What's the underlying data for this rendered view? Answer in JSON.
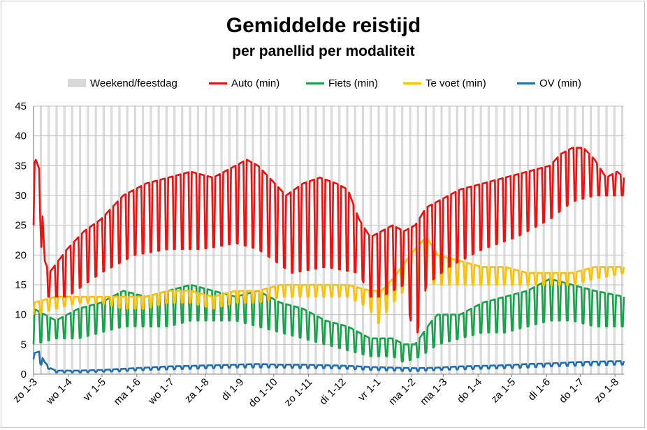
{
  "chart_data": {
    "type": "line",
    "title": "Gemiddelde reistijd",
    "subtitle": "per panellid per modaliteit",
    "ylim": [
      0,
      45
    ],
    "yticks": [
      0,
      5,
      10,
      15,
      20,
      25,
      30,
      35,
      40,
      45
    ],
    "xlim": [
      0,
      526
    ],
    "x_unit": "days since zo 1-3",
    "xticks": [
      {
        "label": "zo 1-3",
        "day": 0
      },
      {
        "label": "wo 1-4",
        "day": 31
      },
      {
        "label": "vr 1-5",
        "day": 61
      },
      {
        "label": "ma 1-6",
        "day": 92
      },
      {
        "label": "wo 1-7",
        "day": 122
      },
      {
        "label": "za 1-8",
        "day": 153
      },
      {
        "label": "di 1-9",
        "day": 184
      },
      {
        "label": "do 1-10",
        "day": 214
      },
      {
        "label": "zo 1-11",
        "day": 245
      },
      {
        "label": "di 1-12",
        "day": 275
      },
      {
        "label": "vr 1-1",
        "day": 306
      },
      {
        "label": "ma 1-2",
        "day": 337
      },
      {
        "label": "ma 1-3",
        "day": 365
      },
      {
        "label": "do 1-4",
        "day": 396
      },
      {
        "label": "za 1-5",
        "day": 426
      },
      {
        "label": "di 1-6",
        "day": 457
      },
      {
        "label": "do 1-7",
        "day": 487
      },
      {
        "label": "zo 1-8",
        "day": 518
      }
    ],
    "weekend_label": "Weekend/feestdag",
    "weekend_color": "#d9d9d9",
    "series": [
      {
        "name": "Auto (min)",
        "color": "#ee1111",
        "weekday": [
          [
            0,
            35
          ],
          [
            2,
            36
          ],
          [
            6,
            34
          ],
          [
            10,
            19
          ],
          [
            14,
            17
          ],
          [
            22,
            19
          ],
          [
            30,
            21
          ],
          [
            45,
            24
          ],
          [
            60,
            26
          ],
          [
            80,
            30
          ],
          [
            100,
            32
          ],
          [
            120,
            33
          ],
          [
            140,
            34
          ],
          [
            160,
            33
          ],
          [
            180,
            35
          ],
          [
            190,
            36
          ],
          [
            200,
            35
          ],
          [
            210,
            33
          ],
          [
            225,
            30
          ],
          [
            240,
            32
          ],
          [
            255,
            33
          ],
          [
            270,
            32
          ],
          [
            280,
            31
          ],
          [
            290,
            26
          ],
          [
            300,
            23
          ],
          [
            310,
            24
          ],
          [
            320,
            25
          ],
          [
            330,
            24
          ],
          [
            340,
            25
          ],
          [
            350,
            28
          ],
          [
            360,
            29
          ],
          [
            380,
            31
          ],
          [
            400,
            32
          ],
          [
            420,
            33
          ],
          [
            440,
            34
          ],
          [
            460,
            35
          ],
          [
            470,
            37
          ],
          [
            480,
            38
          ],
          [
            490,
            38
          ],
          [
            500,
            36
          ],
          [
            510,
            33
          ],
          [
            520,
            34
          ],
          [
            526,
            33
          ]
        ],
        "weekend": [
          [
            0,
            25
          ],
          [
            5,
            30
          ],
          [
            8,
            17
          ],
          [
            12,
            13
          ],
          [
            30,
            13
          ],
          [
            60,
            17
          ],
          [
            90,
            20
          ],
          [
            120,
            21
          ],
          [
            150,
            21
          ],
          [
            180,
            22
          ],
          [
            200,
            21
          ],
          [
            230,
            17
          ],
          [
            260,
            18
          ],
          [
            290,
            17
          ],
          [
            300,
            13
          ],
          [
            310,
            13
          ],
          [
            330,
            15
          ],
          [
            340,
            5
          ],
          [
            350,
            15
          ],
          [
            370,
            18
          ],
          [
            400,
            21
          ],
          [
            430,
            23
          ],
          [
            460,
            26
          ],
          [
            480,
            29
          ],
          [
            500,
            30
          ],
          [
            526,
            30
          ]
        ]
      },
      {
        "name": "Fiets (min)",
        "color": "#16a34a",
        "weekday": [
          [
            0,
            11
          ],
          [
            20,
            9
          ],
          [
            40,
            11
          ],
          [
            60,
            12
          ],
          [
            80,
            14
          ],
          [
            100,
            13
          ],
          [
            120,
            14
          ],
          [
            140,
            15
          ],
          [
            160,
            14
          ],
          [
            180,
            13
          ],
          [
            200,
            14
          ],
          [
            220,
            12
          ],
          [
            240,
            11
          ],
          [
            260,
            9
          ],
          [
            280,
            8
          ],
          [
            290,
            7
          ],
          [
            300,
            6
          ],
          [
            320,
            6
          ],
          [
            330,
            5
          ],
          [
            340,
            5
          ],
          [
            355,
            9
          ],
          [
            360,
            10
          ],
          [
            380,
            10
          ],
          [
            400,
            12
          ],
          [
            420,
            13
          ],
          [
            440,
            14
          ],
          [
            460,
            16
          ],
          [
            480,
            15
          ],
          [
            500,
            14
          ],
          [
            526,
            13
          ]
        ],
        "weekend": [
          [
            0,
            5
          ],
          [
            20,
            6
          ],
          [
            40,
            6
          ],
          [
            60,
            7
          ],
          [
            80,
            8
          ],
          [
            100,
            8
          ],
          [
            120,
            8
          ],
          [
            140,
            9
          ],
          [
            160,
            9
          ],
          [
            180,
            9
          ],
          [
            200,
            8
          ],
          [
            220,
            7
          ],
          [
            240,
            6
          ],
          [
            260,
            5
          ],
          [
            280,
            4
          ],
          [
            300,
            3
          ],
          [
            320,
            3
          ],
          [
            330,
            2
          ],
          [
            345,
            3
          ],
          [
            360,
            5
          ],
          [
            380,
            6
          ],
          [
            400,
            7
          ],
          [
            420,
            7
          ],
          [
            440,
            8
          ],
          [
            460,
            9
          ],
          [
            480,
            9
          ],
          [
            500,
            8
          ],
          [
            526,
            8
          ]
        ]
      },
      {
        "name": "Te voet (min)",
        "color": "#ffc000",
        "weekday": [
          [
            0,
            12
          ],
          [
            20,
            13
          ],
          [
            40,
            13
          ],
          [
            60,
            13
          ],
          [
            80,
            13
          ],
          [
            100,
            13
          ],
          [
            120,
            14
          ],
          [
            140,
            14
          ],
          [
            160,
            13
          ],
          [
            180,
            14
          ],
          [
            200,
            14
          ],
          [
            220,
            15
          ],
          [
            240,
            15
          ],
          [
            260,
            15
          ],
          [
            280,
            15
          ],
          [
            300,
            14
          ],
          [
            310,
            14
          ],
          [
            320,
            16
          ],
          [
            340,
            21
          ],
          [
            350,
            23
          ],
          [
            360,
            20
          ],
          [
            380,
            19
          ],
          [
            400,
            18
          ],
          [
            420,
            18
          ],
          [
            440,
            17
          ],
          [
            460,
            17
          ],
          [
            480,
            17
          ],
          [
            500,
            18
          ],
          [
            526,
            18
          ]
        ],
        "weekend": [
          [
            0,
            10
          ],
          [
            20,
            11
          ],
          [
            40,
            12
          ],
          [
            60,
            12
          ],
          [
            80,
            11
          ],
          [
            100,
            11
          ],
          [
            120,
            12
          ],
          [
            140,
            12
          ],
          [
            160,
            11
          ],
          [
            180,
            12
          ],
          [
            200,
            12
          ],
          [
            220,
            13
          ],
          [
            240,
            13
          ],
          [
            260,
            13
          ],
          [
            280,
            13
          ],
          [
            300,
            11
          ],
          [
            305,
            8
          ],
          [
            320,
            12
          ],
          [
            340,
            16
          ],
          [
            360,
            15
          ],
          [
            380,
            15
          ],
          [
            400,
            15
          ],
          [
            420,
            15
          ],
          [
            440,
            15
          ],
          [
            460,
            15
          ],
          [
            480,
            15
          ],
          [
            500,
            16
          ],
          [
            526,
            17
          ]
        ]
      },
      {
        "name": "OV (min)",
        "color": "#1f6fb5",
        "weekday": [
          [
            0,
            3.5
          ],
          [
            5,
            3.8
          ],
          [
            10,
            2
          ],
          [
            15,
            1
          ],
          [
            20,
            0.6
          ],
          [
            40,
            0.6
          ],
          [
            60,
            0.7
          ],
          [
            80,
            0.9
          ],
          [
            100,
            1.1
          ],
          [
            120,
            1.3
          ],
          [
            140,
            1.4
          ],
          [
            160,
            1.5
          ],
          [
            180,
            1.6
          ],
          [
            200,
            1.7
          ],
          [
            220,
            1.6
          ],
          [
            240,
            1.6
          ],
          [
            260,
            1.5
          ],
          [
            280,
            1.4
          ],
          [
            300,
            1.2
          ],
          [
            320,
            1.1
          ],
          [
            340,
            1.0
          ],
          [
            360,
            1.1
          ],
          [
            380,
            1.3
          ],
          [
            400,
            1.4
          ],
          [
            420,
            1.5
          ],
          [
            440,
            1.7
          ],
          [
            460,
            1.8
          ],
          [
            480,
            2.0
          ],
          [
            500,
            2.1
          ],
          [
            526,
            2.2
          ]
        ],
        "weekend": [
          [
            0,
            2.5
          ],
          [
            10,
            1.2
          ],
          [
            20,
            0.3
          ],
          [
            40,
            0.3
          ],
          [
            60,
            0.4
          ],
          [
            80,
            0.5
          ],
          [
            100,
            0.7
          ],
          [
            120,
            0.8
          ],
          [
            140,
            0.9
          ],
          [
            160,
            1.0
          ],
          [
            180,
            1.1
          ],
          [
            200,
            1.1
          ],
          [
            220,
            1.1
          ],
          [
            240,
            1.0
          ],
          [
            260,
            1.0
          ],
          [
            280,
            0.9
          ],
          [
            300,
            0.7
          ],
          [
            320,
            0.6
          ],
          [
            340,
            0.5
          ],
          [
            360,
            0.7
          ],
          [
            380,
            0.8
          ],
          [
            400,
            0.9
          ],
          [
            420,
            1.0
          ],
          [
            440,
            1.1
          ],
          [
            460,
            1.3
          ],
          [
            480,
            1.4
          ],
          [
            500,
            1.5
          ],
          [
            526,
            1.6
          ]
        ]
      }
    ]
  }
}
